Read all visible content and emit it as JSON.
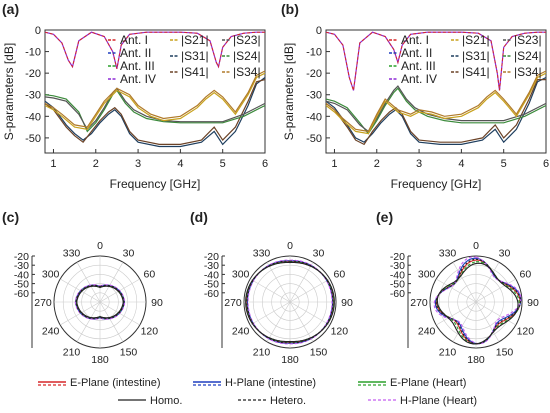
{
  "panels": {
    "a": "(a)",
    "b": "(b)",
    "c": "(c)",
    "d": "(d)",
    "e": "(e)"
  },
  "colors": {
    "ant1": "#d62728",
    "ant2": "#1f3fbf",
    "ant3": "#2ca02c",
    "ant4": "#8e2bd6",
    "s21": "#c8a21e",
    "s31": "#1f3f5f",
    "s41": "#6b4226",
    "s23": "#555555",
    "s24": "#3b8a3b",
    "s34": "#b07a2a",
    "e_int": "#d62728",
    "h_int": "#1f3fbf",
    "e_heart": "#2ca02c",
    "h_heart": "#c45cf0",
    "homo": "#222222"
  },
  "chart_data": [
    {
      "id": "a",
      "type": "line",
      "xlabel": "Frequency [GHz]",
      "ylabel": "S-parameters [dB]",
      "xlim": [
        0.8,
        6.0
      ],
      "ylim": [
        -57,
        0
      ],
      "xticks": [
        "1",
        "2",
        "3",
        "4",
        "5",
        "6"
      ],
      "yticks": [
        "0",
        "-10",
        "-20",
        "-30",
        "-40",
        "-50"
      ],
      "legend_left": [
        "Ant. I",
        "Ant. II",
        "Ant. III",
        "Ant. IV"
      ],
      "legend_right": [
        [
          "|S21|",
          "|S23|"
        ],
        [
          "|S31|",
          "|S24|"
        ],
        [
          "|S41|",
          "|S34|"
        ]
      ],
      "series": [
        {
          "key": "ant4",
          "x": [
            0.8,
            1.0,
            1.2,
            1.35,
            1.45,
            1.6,
            1.9,
            2.2,
            2.4,
            2.5,
            2.6,
            2.8,
            3.2,
            3.6,
            4.0,
            4.4,
            4.7,
            4.85,
            4.9,
            5.0,
            5.2,
            5.5,
            5.8,
            6.0
          ],
          "y": [
            -1,
            -2,
            -6,
            -14,
            -17,
            -5,
            -1,
            -3,
            -10,
            -18,
            -7,
            -2,
            -1,
            -1,
            -1,
            -1.5,
            -5,
            -15,
            -17,
            -8,
            -3,
            -1.5,
            -1,
            -1
          ]
        },
        {
          "key": "s31",
          "x": [
            0.8,
            1.0,
            1.3,
            1.5,
            1.7,
            1.9,
            2.1,
            2.3,
            2.45,
            2.6,
            2.8,
            3.0,
            3.5,
            4.0,
            4.5,
            4.8,
            5.0,
            5.3,
            5.6,
            5.8,
            6.0
          ],
          "y": [
            -33,
            -36,
            -44,
            -48,
            -51,
            -48,
            -43,
            -39,
            -37,
            -40,
            -48,
            -52,
            -54,
            -54,
            -52,
            -47,
            -53,
            -47,
            -35,
            -25,
            -22
          ]
        },
        {
          "key": "s41",
          "x": [
            0.8,
            1.0,
            1.3,
            1.5,
            1.7,
            1.9,
            2.1,
            2.3,
            2.45,
            2.6,
            2.8,
            3.0,
            3.5,
            4.0,
            4.5,
            4.8,
            5.0,
            5.3,
            5.6,
            5.8,
            6.0
          ],
          "y": [
            -34,
            -37,
            -45,
            -49,
            -52,
            -47,
            -42,
            -38,
            -36,
            -39,
            -47,
            -51,
            -53,
            -53,
            -51,
            -45,
            -51,
            -45,
            -33,
            -24,
            -23
          ]
        },
        {
          "key": "s24",
          "x": [
            0.8,
            1.0,
            1.3,
            1.6,
            1.8,
            2.0,
            2.2,
            2.4,
            2.5,
            2.7,
            2.9,
            3.2,
            3.6,
            4.0,
            4.5,
            5.0,
            5.5,
            6.0
          ],
          "y": [
            -30,
            -30.5,
            -32,
            -38,
            -47,
            -43,
            -37,
            -30,
            -28,
            -34,
            -38,
            -41,
            -42.5,
            -43,
            -43,
            -43,
            -40,
            -35
          ]
        },
        {
          "key": "s23",
          "x": [
            0.8,
            1.0,
            1.3,
            1.6,
            1.8,
            2.0,
            2.2,
            2.4,
            2.5,
            2.7,
            2.9,
            3.2,
            3.6,
            4.0,
            4.5,
            5.0,
            5.5,
            6.0
          ],
          "y": [
            -31,
            -31.5,
            -33,
            -39,
            -46,
            -42,
            -36,
            -29,
            -27,
            -33,
            -37,
            -40,
            -42,
            -42.5,
            -42.5,
            -42.5,
            -39,
            -34
          ]
        },
        {
          "key": "s21",
          "x": [
            0.8,
            1.0,
            1.2,
            1.5,
            1.8,
            2.0,
            2.2,
            2.5,
            2.8,
            3.0,
            3.3,
            3.6,
            4.0,
            4.4,
            4.6,
            4.8,
            5.0,
            5.3,
            5.6,
            5.8,
            6.0
          ],
          "y": [
            -35,
            -37,
            -40,
            -45,
            -46,
            -40,
            -34,
            -28,
            -31,
            -36,
            -40,
            -42,
            -41,
            -36,
            -32,
            -29,
            -32,
            -39,
            -30,
            -22,
            -20
          ]
        },
        {
          "key": "s34",
          "x": [
            0.8,
            1.0,
            1.2,
            1.5,
            1.8,
            2.0,
            2.2,
            2.5,
            2.8,
            3.0,
            3.3,
            3.6,
            4.0,
            4.4,
            4.6,
            4.8,
            5.0,
            5.3,
            5.6,
            5.8,
            6.0
          ],
          "y": [
            -34,
            -36,
            -39,
            -44,
            -45,
            -39,
            -33,
            -27,
            -30,
            -35,
            -39,
            -41,
            -40,
            -35,
            -31,
            -28,
            -31,
            -38,
            -29,
            -21,
            -19
          ]
        }
      ]
    },
    {
      "id": "b",
      "type": "line",
      "xlabel": "Frequency [GHz]",
      "ylabel": "S-parameters [dB]",
      "xlim": [
        0.8,
        6.0
      ],
      "ylim": [
        -57,
        0
      ],
      "xticks": [
        "1",
        "2",
        "3",
        "4",
        "5",
        "6"
      ],
      "yticks": [
        "0",
        "-10",
        "-20",
        "-30",
        "-40",
        "-50"
      ],
      "legend_left": [
        "Ant. I",
        "Ant. II",
        "Ant. III",
        "Ant. IV"
      ],
      "legend_right": [
        [
          "|S21|",
          "|S23|"
        ],
        [
          "|S31|",
          "|S24|"
        ],
        [
          "|S41|",
          "|S34|"
        ]
      ],
      "series": [
        {
          "key": "ant4",
          "x": [
            0.8,
            1.0,
            1.2,
            1.35,
            1.45,
            1.6,
            1.9,
            2.2,
            2.4,
            2.5,
            2.6,
            2.8,
            3.2,
            3.6,
            4.0,
            4.4,
            4.7,
            4.85,
            4.9,
            5.0,
            5.2,
            5.5,
            5.8,
            6.0
          ],
          "y": [
            -1,
            -2,
            -7,
            -22,
            -28,
            -6,
            -1,
            -3,
            -9,
            -15,
            -7,
            -2,
            -1,
            -1,
            -1,
            -1.5,
            -5,
            -20,
            -28,
            -8,
            -3,
            -1.5,
            -1,
            -1
          ]
        },
        {
          "key": "s31",
          "x": [
            0.8,
            1.0,
            1.3,
            1.5,
            1.7,
            1.9,
            2.1,
            2.3,
            2.45,
            2.6,
            2.8,
            3.0,
            3.5,
            4.0,
            4.5,
            4.8,
            5.0,
            5.3,
            5.6,
            5.8,
            6.0
          ],
          "y": [
            -33,
            -36,
            -44,
            -50,
            -52,
            -48,
            -43,
            -39,
            -37,
            -40,
            -48,
            -52,
            -53,
            -53,
            -51,
            -46,
            -52,
            -46,
            -34,
            -24,
            -22
          ]
        },
        {
          "key": "s41",
          "x": [
            0.8,
            1.0,
            1.3,
            1.5,
            1.7,
            1.9,
            2.1,
            2.3,
            2.45,
            2.6,
            2.8,
            3.0,
            3.5,
            4.0,
            4.5,
            4.8,
            5.0,
            5.3,
            5.6,
            5.8,
            6.0
          ],
          "y": [
            -34,
            -37,
            -45,
            -51,
            -53,
            -47,
            -42,
            -38,
            -36,
            -39,
            -47,
            -51,
            -52,
            -52,
            -50,
            -44,
            -50,
            -44,
            -32,
            -23,
            -23
          ]
        },
        {
          "key": "s24",
          "x": [
            0.8,
            1.0,
            1.3,
            1.6,
            1.8,
            2.0,
            2.2,
            2.4,
            2.5,
            2.7,
            2.9,
            3.2,
            3.6,
            4.0,
            4.5,
            5.0,
            5.5,
            6.0
          ],
          "y": [
            -32,
            -33,
            -36,
            -43,
            -48,
            -42,
            -35,
            -29,
            -27,
            -33,
            -37,
            -40,
            -42,
            -43,
            -43,
            -43,
            -40,
            -35
          ]
        },
        {
          "key": "s23",
          "x": [
            0.8,
            1.0,
            1.3,
            1.6,
            1.8,
            2.0,
            2.2,
            2.4,
            2.5,
            2.7,
            2.9,
            3.2,
            3.6,
            4.0,
            4.5,
            5.0,
            5.5,
            6.0
          ],
          "y": [
            -33,
            -34,
            -37,
            -44,
            -47,
            -41,
            -34,
            -28,
            -26,
            -32,
            -36,
            -39,
            -41,
            -42,
            -42,
            -42,
            -39,
            -34
          ]
        },
        {
          "key": "s21",
          "x": [
            0.8,
            1.0,
            1.2,
            1.5,
            1.8,
            2.0,
            2.2,
            2.5,
            2.8,
            3.0,
            3.3,
            3.6,
            4.0,
            4.4,
            4.6,
            4.8,
            5.0,
            5.3,
            5.6,
            5.8,
            6.0
          ],
          "y": [
            -35,
            -38,
            -42,
            -47,
            -48,
            -40,
            -33,
            -38,
            -40,
            -38,
            -39,
            -41,
            -40,
            -36,
            -32,
            -29,
            -33,
            -40,
            -30,
            -22,
            -20
          ]
        },
        {
          "key": "s34",
          "x": [
            0.8,
            1.0,
            1.2,
            1.5,
            1.8,
            2.0,
            2.2,
            2.5,
            2.8,
            3.0,
            3.3,
            3.6,
            4.0,
            4.4,
            4.6,
            4.8,
            5.0,
            5.3,
            5.6,
            5.8,
            6.0
          ],
          "y": [
            -34,
            -37,
            -41,
            -46,
            -47,
            -39,
            -32,
            -37,
            -39,
            -37,
            -38,
            -40,
            -39,
            -35,
            -31,
            -28,
            -32,
            -39,
            -29,
            -21,
            -19
          ]
        }
      ]
    },
    {
      "id": "c",
      "type": "polar",
      "rticks": [
        "-20",
        "-30",
        "-40",
        "-50",
        "-60"
      ],
      "rlim": [
        -60,
        -15
      ],
      "angle_ticks": [
        "0",
        "30",
        "60",
        "90",
        "120",
        "150",
        "180",
        "210",
        "240",
        "270",
        "300",
        "330"
      ],
      "pattern": "dumbbell_small"
    },
    {
      "id": "d",
      "type": "polar",
      "rticks": [
        "-20",
        "-30",
        "-40",
        "-50",
        "-60"
      ],
      "rlim": [
        -60,
        -15
      ],
      "angle_ticks": [
        "0",
        "30",
        "60",
        "90",
        "120",
        "150",
        "180",
        "210",
        "240",
        "270",
        "300",
        "330"
      ],
      "pattern": "near_omni"
    },
    {
      "id": "e",
      "type": "polar",
      "rticks": [
        "-20",
        "-30",
        "-40",
        "-50",
        "-60"
      ],
      "rlim": [
        -60,
        -15
      ],
      "angle_ticks": [
        "0",
        "30",
        "60",
        "90",
        "120",
        "150",
        "180",
        "210",
        "240",
        "270",
        "300",
        "330"
      ],
      "pattern": "lobed"
    }
  ],
  "bottom_legend": {
    "row1": [
      "E-Plane (intestine)",
      "H-Plane (intestine)",
      "E-Plane (Heart)"
    ],
    "row2": [
      "Homo.",
      "Hetero.",
      "H-Plane (Heart)"
    ]
  }
}
